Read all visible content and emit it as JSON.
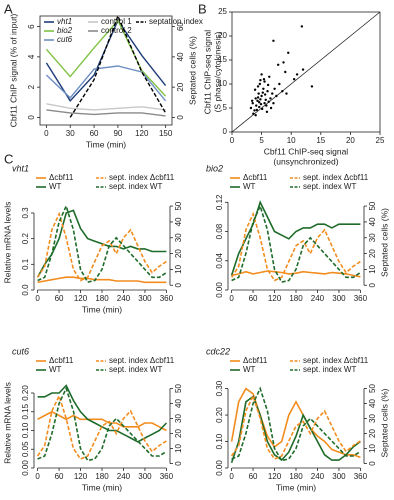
{
  "panel_labels": [
    "A",
    "B",
    "C"
  ],
  "chart_data": [
    {
      "type": "line",
      "x_label": "Time (min)",
      "y_label": "Cbf11 ChIP signal (% of input)",
      "y2_label": "Septated cells (%)",
      "x": [
        0,
        30,
        60,
        90,
        120,
        150
      ],
      "xlim": [
        -8,
        158
      ],
      "xticks": [
        0,
        30,
        60,
        90,
        120,
        150
      ],
      "ylim": [
        -0.5,
        6.7
      ],
      "yticks": [
        0,
        2,
        4,
        6
      ],
      "y2lim": [
        -5,
        67
      ],
      "y2ticks": [
        0,
        20,
        40,
        60
      ],
      "series": [
        {
          "name": "vht1",
          "color": "#1f3d7a",
          "values": [
            3.6,
            1.1,
            2.8,
            6.4,
            4.1,
            2.1
          ]
        },
        {
          "name": "bio2",
          "color": "#7fc241",
          "values": [
            4.5,
            2.7,
            4.6,
            6.4,
            3.1,
            1.4
          ]
        },
        {
          "name": "cut6",
          "color": "#6d8fc4",
          "values": [
            2.8,
            1.3,
            3.2,
            3.4,
            3.0,
            1.1
          ]
        },
        {
          "name": "control 1",
          "color": "#c8c8c8",
          "values": [
            0.9,
            0.6,
            0.5,
            0.6,
            0.7,
            0.5
          ]
        },
        {
          "name": "control 2",
          "color": "#8a8a8a",
          "values": [
            0.5,
            0.3,
            0.2,
            0.3,
            0.3,
            0.1
          ]
        },
        {
          "name": "septation index",
          "color": "#000000",
          "dashed": true,
          "axis": "y2",
          "values": [
            null,
            0,
            25,
            67,
            30,
            3
          ]
        }
      ]
    },
    {
      "type": "scatter",
      "x_label": [
        "Cbf11 ChIP-seq signal",
        "(unsynchronized)"
      ],
      "y_label": [
        "Cbf11 ChIP-seq signal",
        "(S phase/cytokinesis)"
      ],
      "xlim": [
        0,
        25
      ],
      "xticks": [
        0,
        5,
        10,
        15,
        20,
        25
      ],
      "ylim": [
        0,
        25
      ],
      "yticks": [
        0,
        5,
        10,
        15,
        20,
        25
      ],
      "color": "#000000",
      "x": [
        3.2,
        3.5,
        3.8,
        4.0,
        4.1,
        4.3,
        4.5,
        4.6,
        4.8,
        5.0,
        5.1,
        5.3,
        5.5,
        5.6,
        5.8,
        6.0,
        6.2,
        6.5,
        3.6,
        4.2,
        4.4,
        4.7,
        4.9,
        5.2,
        5.4,
        5.7,
        6.1,
        6.8,
        7.0,
        7.5,
        3.9,
        4.0,
        4.6,
        5.0,
        5.5,
        6.3,
        7.2,
        8.0,
        8.5,
        9.0,
        10.5,
        12.0,
        7.8,
        9.5,
        11.0,
        4.4,
        5.9,
        6.6,
        3.4,
        4.8,
        13.5,
        9.2,
        11.8,
        7.0,
        8.7
      ],
      "y": [
        5.0,
        6.0,
        4.5,
        7.0,
        5.5,
        6.5,
        8.0,
        5.2,
        6.8,
        7.5,
        4.8,
        9.0,
        6.0,
        7.8,
        5.5,
        8.5,
        6.3,
        7.0,
        3.8,
        4.6,
        9.5,
        10.0,
        5.8,
        8.2,
        11.0,
        6.7,
        9.8,
        8.0,
        6.0,
        7.5,
        8.8,
        3.5,
        6.2,
        12.0,
        10.5,
        11.5,
        9.0,
        10.0,
        8.5,
        12.5,
        11.0,
        13.0,
        14.0,
        16.5,
        12.0,
        7.2,
        4.2,
        5.0,
        6.5,
        10.8,
        9.5,
        8.0,
        22.0,
        19.0,
        14.5
      ]
    },
    {
      "type": "line",
      "title": "vht1",
      "x_label": "Time (min)",
      "y_label": "Relative mRNA levels",
      "x": [
        0,
        20,
        40,
        60,
        80,
        100,
        120,
        140,
        160,
        180,
        200,
        220,
        240,
        260,
        280,
        300,
        320,
        340,
        360
      ],
      "xlim": [
        -10,
        370
      ],
      "xticks": [
        0,
        60,
        120,
        180,
        240,
        300,
        360
      ],
      "ylim": [
        0,
        0.37
      ],
      "yticks": [
        {
          "value": 0,
          "label": "0.0"
        },
        0.1,
        0.2,
        0.3
      ],
      "y2lim": [
        -3,
        57
      ],
      "y2ticks": [
        0,
        10,
        20,
        30,
        40,
        50
      ],
      "series": [
        {
          "name": "Δcbf11",
          "color": "#f28c1e",
          "values": [
            0.03,
            0.035,
            0.04,
            0.045,
            0.05,
            0.05,
            0.045,
            0.045,
            0.04,
            0.04,
            0.04,
            0.035,
            0.035,
            0.035,
            0.035,
            0.03,
            0.03,
            0.03,
            0.03
          ]
        },
        {
          "name": "WT",
          "color": "#1e6b2a",
          "values": [
            0.05,
            0.1,
            0.14,
            0.2,
            0.3,
            0.31,
            0.24,
            0.2,
            0.19,
            0.18,
            0.17,
            0.17,
            0.16,
            0.17,
            0.16,
            0.16,
            0.15,
            0.15,
            0.15
          ]
        },
        {
          "name": "sept. index Δcbf11",
          "color": "#f28c1e",
          "dashed": true,
          "axis": "y2",
          "values": [
            5,
            12,
            35,
            45,
            30,
            10,
            3,
            5,
            15,
            25,
            28,
            20,
            30,
            35,
            25,
            15,
            8,
            12,
            15
          ]
        },
        {
          "name": "sept. index WT",
          "color": "#1e6b2a",
          "dashed": true,
          "axis": "y2",
          "values": [
            3,
            5,
            20,
            40,
            50,
            35,
            10,
            2,
            3,
            10,
            25,
            30,
            25,
            20,
            15,
            10,
            5,
            5,
            8
          ]
        }
      ]
    },
    {
      "type": "line",
      "title": "bio2",
      "y2_label": "Septated cells (%)",
      "x": [
        0,
        20,
        40,
        60,
        80,
        100,
        120,
        140,
        160,
        180,
        200,
        220,
        240,
        260,
        280,
        300,
        320,
        340,
        360
      ],
      "xlim": [
        -10,
        370
      ],
      "xticks": [
        0,
        60,
        120,
        180,
        240,
        300,
        360
      ],
      "ylim": [
        0,
        0.13
      ],
      "yticks": [
        {
          "value": 0,
          "label": "0.00"
        },
        0.04,
        0.08,
        0.12
      ],
      "y2lim": [
        -3,
        57
      ],
      "y2ticks": [
        0,
        10,
        20,
        30,
        40,
        50
      ],
      "series": [
        {
          "name": "Δcbf11",
          "color": "#f28c1e",
          "values": [
            0.02,
            0.022,
            0.025,
            0.022,
            0.024,
            0.026,
            0.025,
            0.024,
            0.022,
            0.023,
            0.025,
            0.024,
            0.023,
            0.022,
            0.024,
            0.023,
            0.022,
            0.02,
            0.018
          ]
        },
        {
          "name": "WT",
          "color": "#1e6b2a",
          "values": [
            0.02,
            0.05,
            0.07,
            0.09,
            0.12,
            0.1,
            0.08,
            0.075,
            0.07,
            0.08,
            0.085,
            0.085,
            0.09,
            0.09,
            0.085,
            0.09,
            0.09,
            0.09,
            0.09
          ]
        },
        {
          "name": "sept. index Δcbf11",
          "color": "#f28c1e",
          "dashed": true,
          "axis": "y2",
          "values": [
            5,
            12,
            35,
            45,
            30,
            10,
            3,
            5,
            15,
            25,
            28,
            20,
            30,
            35,
            25,
            15,
            8,
            12,
            15
          ]
        },
        {
          "name": "sept. index WT",
          "color": "#1e6b2a",
          "dashed": true,
          "axis": "y2",
          "values": [
            3,
            5,
            20,
            40,
            50,
            35,
            10,
            2,
            3,
            10,
            25,
            30,
            25,
            20,
            15,
            10,
            5,
            5,
            8
          ]
        }
      ]
    },
    {
      "type": "line",
      "title": "cut6",
      "x_label": "Time (min)",
      "y_label": "Relative mRNA levels",
      "x": [
        0,
        20,
        40,
        60,
        80,
        100,
        120,
        140,
        160,
        180,
        200,
        220,
        240,
        260,
        280,
        300,
        320,
        340,
        360
      ],
      "xlim": [
        -10,
        370
      ],
      "xticks": [
        0,
        60,
        120,
        180,
        240,
        300,
        360
      ],
      "ylim": [
        0,
        0.24
      ],
      "yticks": [
        {
          "value": 0,
          "label": "0.00"
        },
        0.05,
        {
          "value": 0.1,
          "label": "0.10"
        },
        0.15,
        {
          "value": 0.2,
          "label": "0.20"
        }
      ],
      "y2lim": [
        -3,
        57
      ],
      "y2ticks": [
        0,
        10,
        20,
        30,
        40,
        50
      ],
      "series": [
        {
          "name": "Δcbf11",
          "color": "#f28c1e",
          "values": [
            0.13,
            0.14,
            0.15,
            0.14,
            0.13,
            0.14,
            0.13,
            0.13,
            0.13,
            0.13,
            0.12,
            0.12,
            0.11,
            0.11,
            0.11,
            0.12,
            0.12,
            0.11,
            0.1
          ]
        },
        {
          "name": "WT",
          "color": "#1e6b2a",
          "values": [
            0.19,
            0.19,
            0.2,
            0.2,
            0.22,
            0.18,
            0.15,
            0.13,
            0.12,
            0.11,
            0.1,
            0.1,
            0.09,
            0.08,
            0.07,
            0.08,
            0.09,
            0.1,
            0.12
          ]
        },
        {
          "name": "sept. index Δcbf11",
          "color": "#f28c1e",
          "dashed": true,
          "axis": "y2",
          "values": [
            5,
            12,
            35,
            45,
            30,
            10,
            3,
            5,
            15,
            25,
            28,
            20,
            30,
            35,
            25,
            15,
            8,
            12,
            15
          ]
        },
        {
          "name": "sept. index WT",
          "color": "#1e6b2a",
          "dashed": true,
          "axis": "y2",
          "values": [
            3,
            5,
            20,
            40,
            50,
            35,
            10,
            2,
            3,
            10,
            25,
            30,
            25,
            20,
            15,
            10,
            5,
            5,
            8
          ]
        }
      ]
    },
    {
      "type": "line",
      "title": "cdc22",
      "x_label": "Time (min)",
      "y2_label": "Septated cells (%)",
      "x": [
        0,
        20,
        40,
        60,
        80,
        100,
        120,
        140,
        160,
        180,
        200,
        220,
        240,
        260,
        280,
        300,
        320,
        340,
        360
      ],
      "xlim": [
        -10,
        370
      ],
      "xticks": [
        0,
        60,
        120,
        180,
        240,
        300,
        360
      ],
      "ylim": [
        0,
        0.34
      ],
      "yticks": [
        {
          "value": 0,
          "label": "0.00"
        },
        {
          "value": 0.1,
          "label": "0.10"
        },
        {
          "value": 0.2,
          "label": "0.20"
        },
        {
          "value": 0.3,
          "label": "0.30"
        }
      ],
      "y2lim": [
        -3,
        57
      ],
      "y2ticks": [
        0,
        10,
        20,
        30,
        40,
        50
      ],
      "series": [
        {
          "name": "Δcbf11",
          "color": "#f28c1e",
          "values": [
            0.1,
            0.25,
            0.3,
            0.28,
            0.2,
            0.12,
            0.08,
            0.1,
            0.2,
            0.25,
            0.2,
            0.15,
            0.12,
            0.1,
            0.07,
            0.06,
            0.05,
            0.05,
            0.04
          ]
        },
        {
          "name": "WT",
          "color": "#1e6b2a",
          "values": [
            0.02,
            0.1,
            0.25,
            0.27,
            0.2,
            0.1,
            0.05,
            0.03,
            0.06,
            0.12,
            0.2,
            0.15,
            0.1,
            0.05,
            0.03,
            0.03,
            0.05,
            0.08,
            0.1
          ]
        },
        {
          "name": "sept. index Δcbf11",
          "color": "#f28c1e",
          "dashed": true,
          "axis": "y2",
          "values": [
            5,
            12,
            35,
            45,
            30,
            10,
            3,
            5,
            15,
            25,
            28,
            20,
            30,
            35,
            25,
            15,
            8,
            12,
            15
          ]
        },
        {
          "name": "sept. index WT",
          "color": "#1e6b2a",
          "dashed": true,
          "axis": "y2",
          "values": [
            3,
            5,
            20,
            40,
            50,
            35,
            10,
            2,
            3,
            10,
            25,
            30,
            25,
            20,
            15,
            10,
            5,
            5,
            8
          ]
        }
      ]
    }
  ]
}
